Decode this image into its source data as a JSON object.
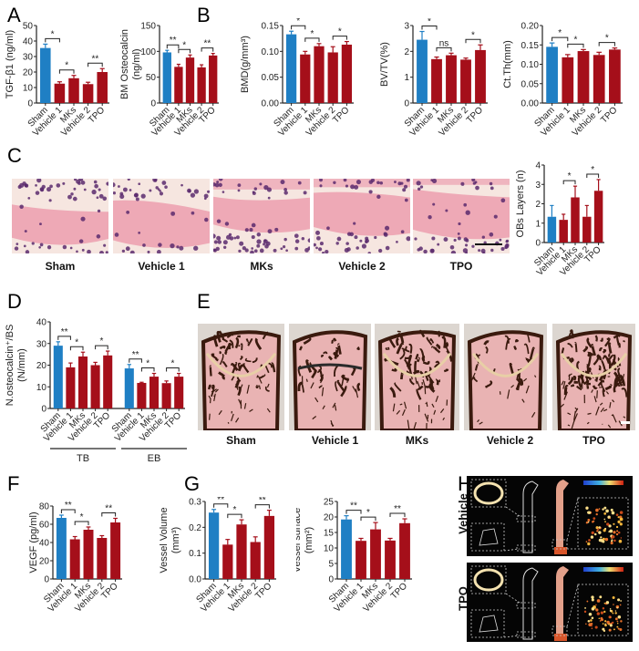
{
  "colors": {
    "sham": "#1f7fc4",
    "treatment": "#a50f1a",
    "axis": "#222222",
    "he_bone": "#eea9b6",
    "he_marrow": "#f6e6e0",
    "he_cell": "#5b2a6d",
    "vk_bone": "#3a1a0e",
    "vk_marrow": "#e9b3b3",
    "ct_bg": "#050505"
  },
  "panels": {
    "A": "A",
    "B": "B",
    "C": "C",
    "D": "D",
    "E": "E",
    "F": "F",
    "G": "G",
    "H": "H"
  },
  "groups": [
    "Sham",
    "Vehicle 1",
    "MKs",
    "Vehicle 2",
    "TPO"
  ],
  "panel_c": {
    "images": [
      "Sham",
      "Vehicle 1",
      "MKs",
      "Vehicle 2",
      "TPO"
    ]
  },
  "panel_d": {
    "sections": [
      "TB",
      "EB"
    ]
  },
  "panel_e": {
    "images": [
      "Sham",
      "Vehicle 1",
      "MKs",
      "Vehicle 2",
      "TPO"
    ]
  },
  "panel_h": {
    "rows": [
      "Vehicle",
      "TPO"
    ]
  },
  "chart_data": [
    {
      "id": "A1",
      "type": "bar",
      "title": "",
      "categories": [
        "Sham",
        "Vehicle 1",
        "MKs",
        "Vehicle 2",
        "TPO"
      ],
      "values": [
        35.5,
        12.5,
        16,
        12.2,
        20
      ],
      "errors": [
        2.5,
        1.2,
        1.8,
        1.2,
        2.2
      ],
      "ylabel": "TGF-β1 (ng/ml)",
      "ylim": [
        0,
        50
      ],
      "yticks": [
        0,
        10,
        20,
        30,
        40,
        50
      ],
      "significance": [
        {
          "from": 0,
          "to": 1,
          "label": "*"
        },
        {
          "from": 1,
          "to": 2,
          "label": "*"
        },
        {
          "from": 3,
          "to": 4,
          "label": "**"
        }
      ]
    },
    {
      "id": "A2",
      "type": "bar",
      "categories": [
        "Sham",
        "Vehicle 1",
        "MKs",
        "Vehicle 2",
        "TPO"
      ],
      "values": [
        98,
        70,
        88,
        69,
        92
      ],
      "errors": [
        4,
        5,
        5,
        5,
        4
      ],
      "ylabel": "BM Osteocalcin (ng/ml)",
      "ylim": [
        0,
        150
      ],
      "yticks": [
        0,
        50,
        100,
        150
      ],
      "significance": [
        {
          "from": 0,
          "to": 1,
          "label": "**"
        },
        {
          "from": 1,
          "to": 2,
          "label": "*"
        },
        {
          "from": 3,
          "to": 4,
          "label": "**"
        }
      ]
    },
    {
      "id": "B1",
      "type": "bar",
      "categories": [
        "Sham",
        "Vehicle 1",
        "MKs",
        "Vehicle 2",
        "TPO"
      ],
      "values": [
        0.133,
        0.094,
        0.11,
        0.098,
        0.113
      ],
      "errors": [
        0.006,
        0.006,
        0.005,
        0.011,
        0.006
      ],
      "ylabel": "BMD(g/mm³)",
      "ylim": [
        0,
        0.15
      ],
      "yticks": [
        0.0,
        0.05,
        0.1,
        0.15
      ],
      "ytick_labels": [
        "0.00",
        "0.05",
        "0.10",
        "0.15"
      ],
      "significance": [
        {
          "from": 0,
          "to": 1,
          "label": "*"
        },
        {
          "from": 1,
          "to": 2,
          "label": "*"
        },
        {
          "from": 3,
          "to": 4,
          "label": "*"
        }
      ]
    },
    {
      "id": "B2",
      "type": "bar",
      "categories": [
        "Sham",
        "Vehicle 1",
        "MKs",
        "Vehicle 2",
        "TPO"
      ],
      "values": [
        2.45,
        1.7,
        1.85,
        1.68,
        2.05
      ],
      "errors": [
        0.32,
        0.08,
        0.08,
        0.06,
        0.2
      ],
      "ylabel": "BV/TV(%)",
      "ylim": [
        0,
        3
      ],
      "yticks": [
        0,
        1,
        2,
        3
      ],
      "significance": [
        {
          "from": 0,
          "to": 1,
          "label": "*"
        },
        {
          "from": 1,
          "to": 2,
          "label": "ns"
        },
        {
          "from": 3,
          "to": 4,
          "label": "*"
        }
      ]
    },
    {
      "id": "B3",
      "type": "bar",
      "categories": [
        "Sham",
        "Vehicle 1",
        "MKs",
        "Vehicle 2",
        "TPO"
      ],
      "values": [
        0.145,
        0.118,
        0.134,
        0.124,
        0.138
      ],
      "errors": [
        0.01,
        0.007,
        0.004,
        0.007,
        0.004
      ],
      "ylabel": "Ct.Th(mm)",
      "ylim": [
        0,
        0.2
      ],
      "yticks": [
        0.0,
        0.05,
        0.1,
        0.15,
        0.2
      ],
      "ytick_labels": [
        "0.00",
        "0.05",
        "0.10",
        "0.15",
        "0.20"
      ],
      "significance": [
        {
          "from": 0,
          "to": 1,
          "label": "*"
        },
        {
          "from": 1,
          "to": 2,
          "label": "*"
        },
        {
          "from": 3,
          "to": 4,
          "label": "*"
        }
      ]
    },
    {
      "id": "C",
      "type": "bar",
      "categories": [
        "Sham",
        "Vehicle 1",
        "MKs",
        "Vehicle 2",
        "TPO"
      ],
      "values": [
        1.33,
        1.17,
        2.33,
        1.33,
        2.67
      ],
      "errors": [
        0.58,
        0.29,
        0.58,
        0.58,
        0.58
      ],
      "ylabel": "OBs Layers (n)",
      "ylim": [
        0,
        4
      ],
      "yticks": [
        0,
        1,
        2,
        3,
        4
      ],
      "significance": [
        {
          "from": 1,
          "to": 2,
          "label": "*"
        },
        {
          "from": 3,
          "to": 4,
          "label": "*"
        }
      ]
    },
    {
      "id": "D",
      "type": "bar",
      "groups": [
        "TB",
        "EB"
      ],
      "categories": [
        "Sham",
        "Vehicle 1",
        "MKs",
        "Vehicle 2",
        "TPO"
      ],
      "series": [
        {
          "name": "TB",
          "values": [
            29,
            19,
            24,
            20,
            24.5
          ],
          "errors": [
            1.8,
            2,
            2,
            1.3,
            2
          ]
        },
        {
          "name": "EB",
          "values": [
            18.5,
            11.8,
            14.7,
            11.7,
            14.7
          ],
          "errors": [
            1.8,
            0.3,
            1.5,
            1,
            1.5
          ]
        }
      ],
      "ylabel": "N.osteocalcin⁺/BS (N/mm)",
      "ylim": [
        0,
        40
      ],
      "yticks": [
        0,
        10,
        20,
        30,
        40
      ],
      "significance": [
        [
          {
            "from": 0,
            "to": 1,
            "label": "**"
          },
          {
            "from": 1,
            "to": 2,
            "label": "*"
          },
          {
            "from": 3,
            "to": 4,
            "label": "*"
          }
        ],
        [
          {
            "from": 0,
            "to": 1,
            "label": "**"
          },
          {
            "from": 1,
            "to": 2,
            "label": "*"
          },
          {
            "from": 3,
            "to": 4,
            "label": "*"
          }
        ]
      ]
    },
    {
      "id": "F",
      "type": "bar",
      "categories": [
        "Sham",
        "Vehicle 1",
        "MKs",
        "Vehicle 2",
        "TPO"
      ],
      "values": [
        67,
        43.5,
        54,
        45,
        62
      ],
      "errors": [
        3,
        3,
        3,
        2.5,
        4.5
      ],
      "ylabel": "VEGF (pg/ml)",
      "ylim": [
        0,
        80
      ],
      "yticks": [
        0,
        20,
        40,
        60,
        80
      ],
      "significance": [
        {
          "from": 0,
          "to": 1,
          "label": "**"
        },
        {
          "from": 1,
          "to": 2,
          "label": "*"
        },
        {
          "from": 3,
          "to": 4,
          "label": "**"
        }
      ]
    },
    {
      "id": "G1",
      "type": "bar",
      "categories": [
        "Sham",
        "Vehicle 1",
        "MKs",
        "Vehicle 2",
        "TPO"
      ],
      "values": [
        0.257,
        0.133,
        0.211,
        0.143,
        0.244
      ],
      "errors": [
        0.012,
        0.02,
        0.018,
        0.02,
        0.022
      ],
      "ylabel": "Vessel Volume (mm³)",
      "ylim": [
        0,
        0.3
      ],
      "yticks": [
        0,
        0.1,
        0.2,
        0.3
      ],
      "ytick_labels": [
        "0.0",
        "0.1",
        "0.2",
        "0.3"
      ],
      "significance": [
        {
          "from": 0,
          "to": 1,
          "label": "**"
        },
        {
          "from": 1,
          "to": 2,
          "label": "*"
        },
        {
          "from": 3,
          "to": 4,
          "label": "**"
        }
      ]
    },
    {
      "id": "G2",
      "type": "bar",
      "categories": [
        "Sham",
        "Vehicle 1",
        "MKs",
        "Vehicle 2",
        "TPO"
      ],
      "values": [
        19.2,
        12.3,
        16,
        12.4,
        18
      ],
      "errors": [
        1.2,
        0.8,
        2.2,
        0.7,
        1.4
      ],
      "ylabel": "Vessel surface (mm²)",
      "ylim": [
        0,
        25
      ],
      "yticks": [
        0,
        5,
        10,
        15,
        20,
        25
      ],
      "significance": [
        {
          "from": 0,
          "to": 1,
          "label": "**"
        },
        {
          "from": 1,
          "to": 2,
          "label": "*"
        },
        {
          "from": 3,
          "to": 4,
          "label": "**"
        }
      ]
    }
  ]
}
